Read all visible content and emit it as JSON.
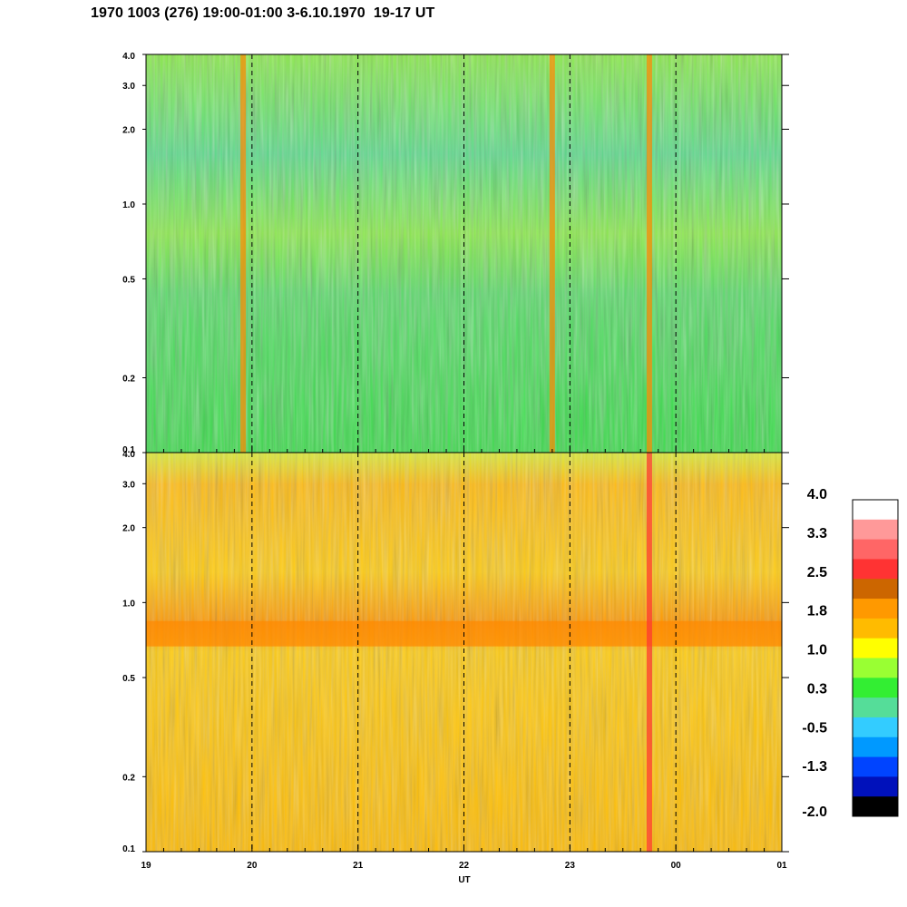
{
  "title": "1970 1003 (276) 19:00-01:00 3-6.10.1970  19-17 UT",
  "chart_data": [
    {
      "type": "heatmap",
      "panel": "upper",
      "x_ticks": [
        "19",
        "20",
        "21",
        "22",
        "23",
        "00",
        "01"
      ],
      "y_ticks": [
        "4.0",
        "3.0",
        "2.0",
        "1.0",
        "0.5",
        "0.2",
        "0.1"
      ],
      "y_scale": "log",
      "ylim": [
        0.1,
        4.0
      ],
      "dominant_level": 0.3,
      "features": [
        {
          "x": "19:55",
          "level": 1.8
        },
        {
          "x": "22:50",
          "level": 1.8
        },
        {
          "x": "23:45",
          "level": 1.8
        }
      ]
    },
    {
      "type": "heatmap",
      "panel": "lower",
      "x_ticks": [
        "19",
        "20",
        "21",
        "22",
        "23",
        "00",
        "01"
      ],
      "y_ticks": [
        "4.0",
        "3.0",
        "2.0",
        "1.0",
        "0.5",
        "0.2",
        "0.1"
      ],
      "y_scale": "log",
      "ylim": [
        0.1,
        4.0
      ],
      "xlabel": "UT",
      "dominant_level": 1.8,
      "band": {
        "y_center": 0.75,
        "level": 1.8
      },
      "features": [
        {
          "x": "23:45",
          "level": 2.5
        }
      ]
    }
  ],
  "colorbar": {
    "labels": [
      "4.0",
      "3.3",
      "2.5",
      "1.8",
      "1.0",
      "0.3",
      "-0.5",
      "-1.3",
      "-2.0"
    ],
    "colors": [
      "#ffffff",
      "#ff9999",
      "#ff6666",
      "#ff3333",
      "#cc6600",
      "#ff9900",
      "#ffbb00",
      "#ffff00",
      "#99ff33",
      "#33ee33",
      "#55dd99",
      "#33ccff",
      "#0099ff",
      "#0044ff",
      "#0011bb",
      "#000000"
    ]
  }
}
